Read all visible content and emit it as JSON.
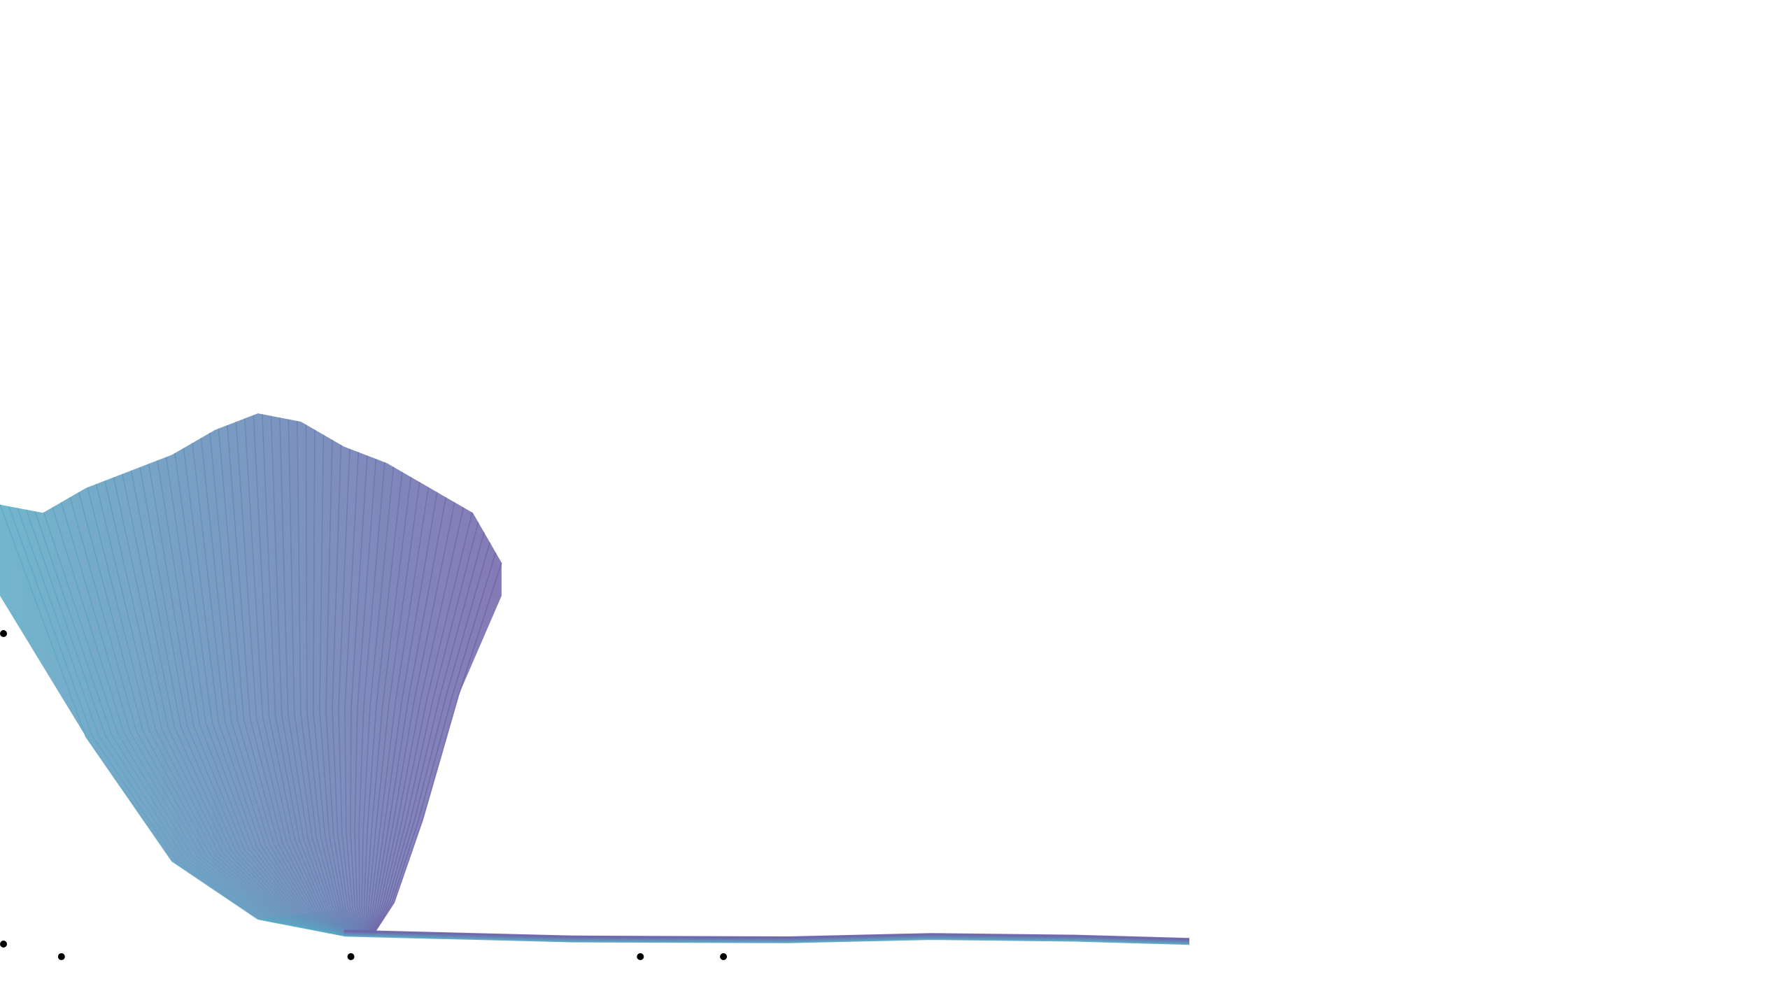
{
  "chart_data": {
    "type": "area",
    "title": "",
    "xlabel": "",
    "ylabel": "",
    "x_ticks": [
      "",
      "",
      "",
      ""
    ],
    "y_ticks": [
      "",
      ""
    ],
    "grid": false,
    "legend": "none",
    "colors": {
      "start": "#5aa9c4",
      "end": "#6f63a8",
      "stroke": "#4b6fa6",
      "tick": "#000000",
      "background": "#ffffff"
    },
    "series_count": 60,
    "envelope": {
      "left_edge": [
        [
          0.0,
          0.42
        ],
        [
          0.6,
          0.25
        ],
        [
          1.2,
          0.1
        ],
        [
          1.8,
          0.03
        ],
        [
          2.4,
          0.01
        ]
      ],
      "right_edge": [
        [
          3.5,
          0.42
        ],
        [
          3.2,
          0.3
        ],
        [
          2.95,
          0.15
        ],
        [
          2.75,
          0.05
        ],
        [
          2.6,
          0.01
        ]
      ],
      "top_edge": [
        [
          0.0,
          0.53
        ],
        [
          0.3,
          0.52
        ],
        [
          0.6,
          0.55
        ],
        [
          0.9,
          0.57
        ],
        [
          1.2,
          0.59
        ],
        [
          1.5,
          0.62
        ],
        [
          1.8,
          0.64
        ],
        [
          2.1,
          0.63
        ],
        [
          2.4,
          0.6
        ],
        [
          2.7,
          0.58
        ],
        [
          3.0,
          0.55
        ],
        [
          3.3,
          0.52
        ],
        [
          3.5,
          0.46
        ]
      ],
      "tail": [
        [
          2.4,
          0.01
        ],
        [
          4.0,
          0.003
        ],
        [
          5.5,
          0.002
        ],
        [
          6.5,
          0.006
        ],
        [
          7.5,
          0.004
        ],
        [
          8.3,
          0.0
        ]
      ]
    }
  }
}
